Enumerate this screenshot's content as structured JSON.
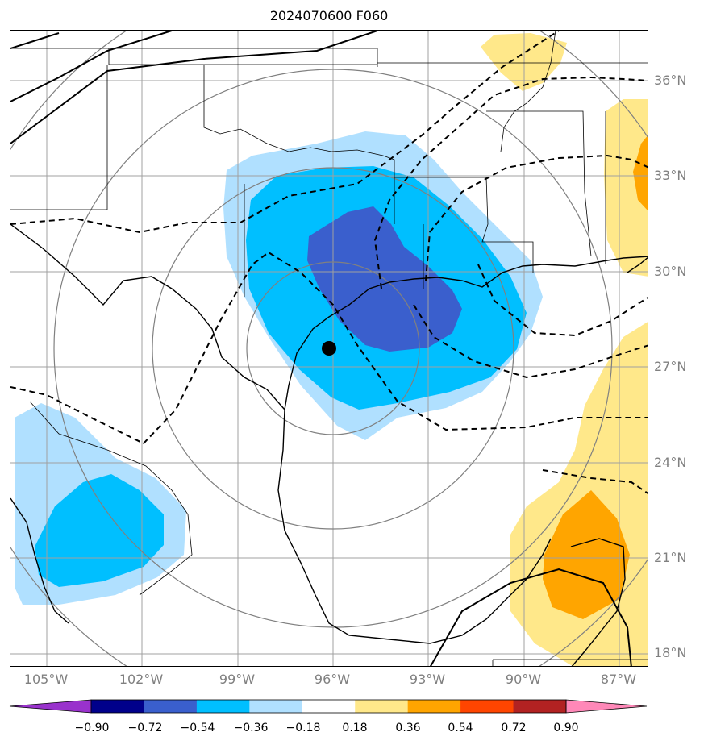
{
  "title": "2024070600 F060",
  "lat_labels": [
    "36°N",
    "33°N",
    "30°N",
    "27°N",
    "24°N",
    "21°N",
    "18°N"
  ],
  "lon_labels": [
    "105°W",
    "102°W",
    "99°W",
    "96°W",
    "93°W",
    "90°W",
    "87°W"
  ],
  "colorbar": {
    "ticks": [
      "−0.90",
      "−0.72",
      "−0.54",
      "−0.36",
      "−0.18",
      "0.18",
      "0.36",
      "0.54",
      "0.72",
      "0.90"
    ],
    "colors": [
      "#9932cc",
      "#00008b",
      "#3a5fcd",
      "#00bfff",
      "#b0e0ff",
      "#ffffff",
      "#ffe88a",
      "#ffa500",
      "#ff4500",
      "#b22222",
      "#ff88b8"
    ]
  },
  "colors": {
    "grid": "#a0a0a0",
    "range_rings": "#808080",
    "coast": "#000000",
    "negative_light": "#b0e0ff",
    "negative_mid": "#00bfff",
    "negative_dark": "#3a5fcd",
    "positive_light": "#ffe88a",
    "positive_mid": "#ffa500"
  }
}
